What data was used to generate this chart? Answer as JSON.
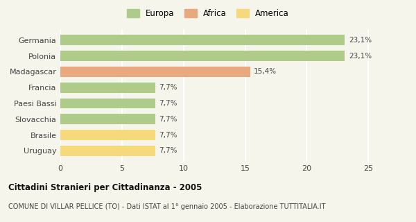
{
  "categories": [
    "Uruguay",
    "Brasile",
    "Slovacchia",
    "Paesi Bassi",
    "Francia",
    "Madagascar",
    "Polonia",
    "Germania"
  ],
  "values": [
    7.7,
    7.7,
    7.7,
    7.7,
    7.7,
    15.4,
    23.1,
    23.1
  ],
  "labels": [
    "7,7%",
    "7,7%",
    "7,7%",
    "7,7%",
    "7,7%",
    "15,4%",
    "23,1%",
    "23,1%"
  ],
  "colors": [
    "#f5d97a",
    "#f5d97a",
    "#aecb8a",
    "#aecb8a",
    "#aecb8a",
    "#e8a97e",
    "#aecb8a",
    "#aecb8a"
  ],
  "legend": [
    {
      "label": "Europa",
      "color": "#aecb8a"
    },
    {
      "label": "Africa",
      "color": "#e8a97e"
    },
    {
      "label": "America",
      "color": "#f5d97a"
    }
  ],
  "xlim": [
    0,
    26
  ],
  "xticks": [
    0,
    5,
    10,
    15,
    20,
    25
  ],
  "title": "Cittadini Stranieri per Cittadinanza - 2005",
  "subtitle": "COMUNE DI VILLAR PELLICE (TO) - Dati ISTAT al 1° gennaio 2005 - Elaborazione TUTTITALIA.IT",
  "background_color": "#f5f5eb",
  "grid_color": "#ffffff",
  "bar_height": 0.65
}
